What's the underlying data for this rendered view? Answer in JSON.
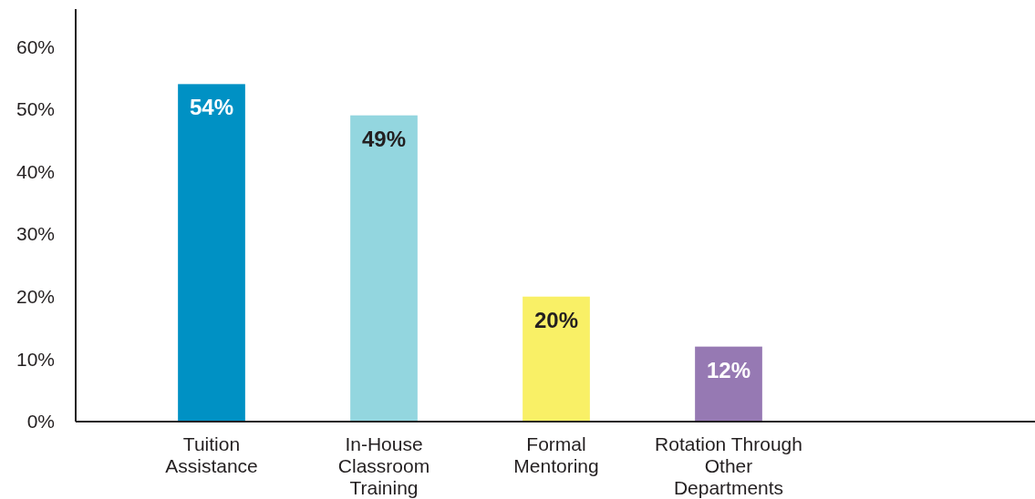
{
  "chart_data": {
    "type": "bar",
    "categories": [
      "Tuition\nAssistance",
      "In-House\nClassroom\nTraining",
      "Formal\nMentoring",
      "Rotation Through\nOther\nDepartments"
    ],
    "values": [
      54,
      49,
      20,
      12
    ],
    "colors": [
      "#0091c4",
      "#93d6df",
      "#f9f066",
      "#9679b3"
    ],
    "ylim": [
      0,
      66
    ],
    "yticks": [
      {
        "value": 0,
        "label": "0%"
      },
      {
        "value": 10,
        "label": "10%"
      },
      {
        "value": 20,
        "label": "20%"
      },
      {
        "value": 30,
        "label": "30%"
      },
      {
        "value": 40,
        "label": "40%"
      },
      {
        "value": 50,
        "label": "50%"
      },
      {
        "value": 60,
        "label": "60%"
      }
    ],
    "value_labels": [
      "54%",
      "49%",
      "20%",
      "12%"
    ],
    "grid": false
  }
}
